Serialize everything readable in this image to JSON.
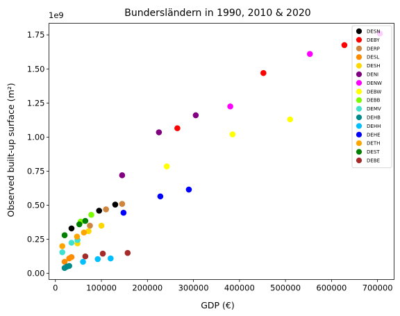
{
  "chart_data": {
    "type": "scatter",
    "title": "Bundersländern in 1990, 2010 & 2020",
    "xlabel": "GDP (€)",
    "ylabel": "Observed built-up surface (m²)",
    "y_offset_label": "1e9",
    "xlim": [
      -14000,
      736000
    ],
    "ylim": [
      -0.045,
      1.835
    ],
    "x_ticks": [
      0,
      100000,
      200000,
      300000,
      400000,
      500000,
      600000,
      700000
    ],
    "x_tick_labels": [
      "0",
      "100000",
      "200000",
      "300000",
      "400000",
      "500000",
      "600000",
      "700000"
    ],
    "y_ticks": [
      0,
      0.25,
      0.5,
      0.75,
      1.0,
      1.25,
      1.5,
      1.75
    ],
    "y_tick_labels": [
      "0.00",
      "0.25",
      "0.50",
      "0.75",
      "1.00",
      "1.25",
      "1.50",
      "1.75"
    ],
    "grid": false,
    "legend_position": "top-right",
    "series": [
      {
        "name": "DESN",
        "color": "#000000",
        "points": [
          [
            35000,
            0.33
          ],
          [
            95000,
            0.46
          ],
          [
            130000,
            0.505
          ]
        ]
      },
      {
        "name": "DEBY",
        "color": "#ff0000",
        "points": [
          [
            265000,
            1.065
          ],
          [
            452000,
            1.47
          ],
          [
            628000,
            1.675
          ]
        ]
      },
      {
        "name": "DERP",
        "color": "#cd853f",
        "points": [
          [
            75000,
            0.35
          ],
          [
            110000,
            0.47
          ],
          [
            145000,
            0.51
          ]
        ]
      },
      {
        "name": "DESL",
        "color": "#ff8c00",
        "points": [
          [
            20000,
            0.085
          ],
          [
            30000,
            0.11
          ],
          [
            35000,
            0.12
          ]
        ]
      },
      {
        "name": "DESH",
        "color": "#ffd700",
        "points": [
          [
            48000,
            0.22
          ],
          [
            72000,
            0.31
          ],
          [
            100000,
            0.35
          ]
        ]
      },
      {
        "name": "DENI",
        "color": "#800080",
        "points": [
          [
            145000,
            0.72
          ],
          [
            225000,
            1.035
          ],
          [
            305000,
            1.16
          ]
        ]
      },
      {
        "name": "DENW",
        "color": "#ff00ff",
        "points": [
          [
            380000,
            1.225
          ],
          [
            553000,
            1.61
          ],
          [
            705000,
            1.76
          ]
        ]
      },
      {
        "name": "DEBW",
        "color": "#ffff00",
        "points": [
          [
            242000,
            0.785
          ],
          [
            385000,
            1.02
          ],
          [
            510000,
            1.13
          ]
        ]
      },
      {
        "name": "DEBB",
        "color": "#7cfc00",
        "points": [
          [
            55000,
            0.38
          ],
          [
            78000,
            0.43
          ]
        ]
      },
      {
        "name": "DEMV",
        "color": "#40e0d0",
        "points": [
          [
            15000,
            0.155
          ],
          [
            35000,
            0.225
          ],
          [
            48000,
            0.245
          ]
        ]
      },
      {
        "name": "DEHB",
        "color": "#008b8b",
        "points": [
          [
            20000,
            0.04
          ],
          [
            25000,
            0.05
          ],
          [
            30000,
            0.055
          ]
        ]
      },
      {
        "name": "DEHH",
        "color": "#00bfff",
        "points": [
          [
            60000,
            0.085
          ],
          [
            92000,
            0.105
          ],
          [
            120000,
            0.11
          ]
        ]
      },
      {
        "name": "DEHE",
        "color": "#0000ff",
        "points": [
          [
            148000,
            0.445
          ],
          [
            228000,
            0.565
          ],
          [
            290000,
            0.615
          ]
        ]
      },
      {
        "name": "DETH",
        "color": "#ffa500",
        "points": [
          [
            15000,
            0.2
          ],
          [
            47000,
            0.27
          ],
          [
            62000,
            0.3
          ]
        ]
      },
      {
        "name": "DEST",
        "color": "#008000",
        "points": [
          [
            20000,
            0.28
          ],
          [
            52000,
            0.36
          ],
          [
            65000,
            0.385
          ]
        ]
      },
      {
        "name": "DEBE",
        "color": "#a52a2a",
        "points": [
          [
            65000,
            0.125
          ],
          [
            103000,
            0.145
          ],
          [
            157000,
            0.15
          ]
        ]
      }
    ]
  }
}
